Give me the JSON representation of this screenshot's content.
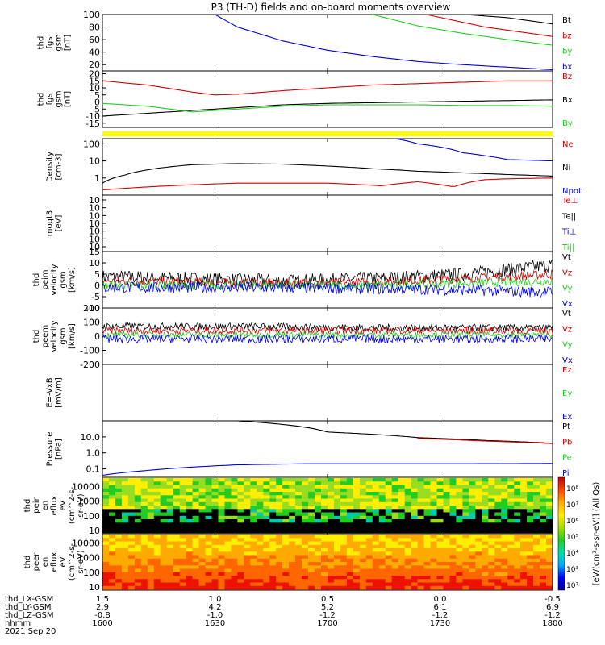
{
  "page": {
    "title": "P3 (TH-D) fields and on-board moments overview"
  },
  "chart_data": [
    {
      "type": "line",
      "panel": "fgs-btot-gsm",
      "ylabel": [
        "thd",
        "fgs",
        "gsm",
        "[nT]"
      ],
      "ylim": [
        10,
        100
      ],
      "yticks": [
        "100",
        "80",
        "60",
        "40",
        "20"
      ],
      "legend": [
        {
          "name": "Bt",
          "color": "#000000"
        },
        {
          "name": "bz",
          "color": "#d40000"
        },
        {
          "name": "by",
          "color": "#22cc22"
        },
        {
          "name": "bx",
          "color": "#0000dd"
        }
      ],
      "series": [
        {
          "name": "Bt",
          "color": "#000000",
          "x": [
            0.63,
            0.75,
            0.9,
            1.0
          ],
          "y": [
            109,
            103,
            95,
            85
          ]
        },
        {
          "name": "bz",
          "color": "#d40000",
          "x": [
            0.72,
            0.85,
            1.0
          ],
          "y": [
            100,
            80,
            65
          ]
        },
        {
          "name": "by",
          "color": "#22cc22",
          "x": [
            0.6,
            0.7,
            0.8,
            0.9,
            1.0
          ],
          "y": [
            100,
            82,
            70,
            60,
            51
          ]
        },
        {
          "name": "bx",
          "color": "#0000dd",
          "x": [
            0.25,
            0.3,
            0.4,
            0.5,
            0.6,
            0.7,
            0.8,
            0.9,
            1.0
          ],
          "y": [
            100,
            80,
            58,
            43,
            33,
            25,
            20,
            16,
            12
          ]
        }
      ]
    },
    {
      "type": "line",
      "panel": "fgs-b-gsm",
      "ylabel": [
        "thd",
        "fgs",
        "gsm",
        "[nT]"
      ],
      "ylim": [
        -18,
        22
      ],
      "yticks": [
        "20",
        "15",
        "10",
        "5",
        "0",
        "-5",
        "-10",
        "-15"
      ],
      "legend": [
        {
          "name": "Bz",
          "color": "#d40000"
        },
        {
          "name": "Bx",
          "color": "#000000"
        },
        {
          "name": "By",
          "color": "#22cc22"
        }
      ],
      "series": [
        {
          "name": "Bz",
          "color": "#d40000",
          "x": [
            0,
            0.1,
            0.2,
            0.25,
            0.3,
            0.4,
            0.5,
            0.6,
            0.7,
            0.8,
            0.9,
            1.0
          ],
          "y": [
            15,
            12,
            7,
            5,
            5.5,
            8,
            10,
            12,
            13,
            14,
            15,
            15
          ]
        },
        {
          "name": "Bx",
          "color": "#000000",
          "x": [
            0,
            0.1,
            0.2,
            0.3,
            0.4,
            0.5,
            0.6,
            0.7,
            0.8,
            0.9,
            1.0
          ],
          "y": [
            -10,
            -8,
            -6,
            -4,
            -2,
            -1,
            -0.5,
            0,
            0.5,
            1,
            1.5
          ]
        },
        {
          "name": "By",
          "color": "#22cc22",
          "x": [
            0,
            0.1,
            0.2,
            0.3,
            0.4,
            0.5,
            0.6,
            0.7,
            0.8,
            0.9,
            1.0
          ],
          "y": [
            -1,
            -3,
            -7,
            -5,
            -3,
            -2,
            -2,
            -2,
            -2.5,
            -2.5,
            -3
          ]
        }
      ]
    },
    {
      "type": "line",
      "panel": "moments-density",
      "ylabel": [
        "Density",
        "[cm-3]"
      ],
      "ylim": [
        0.1,
        200
      ],
      "ylog": true,
      "yticks": [
        "100",
        "10",
        "1"
      ],
      "legend": [
        {
          "name": "Ne",
          "color": "#d40000"
        },
        {
          "name": "Ni",
          "color": "#000000"
        },
        {
          "name": "Npot",
          "color": "#0000dd"
        }
      ],
      "series": [
        {
          "name": "Ni",
          "color": "#000000",
          "x": [
            0,
            0.05,
            0.1,
            0.2,
            0.3,
            0.4,
            0.5,
            0.6,
            0.7,
            0.8,
            0.9,
            1.0
          ],
          "y": [
            0.5,
            1.5,
            3,
            6,
            7,
            6.5,
            5,
            3.5,
            2.5,
            2,
            1.6,
            1.3
          ]
        },
        {
          "name": "Npot",
          "color": "#0000dd",
          "x": [
            0.65,
            0.7,
            0.8,
            0.85,
            0.9,
            1.0
          ],
          "y": [
            200,
            100,
            30,
            20,
            12,
            10
          ]
        },
        {
          "name": "Ne",
          "color": "#d40000",
          "x": [
            0,
            0.1,
            0.2,
            0.3,
            0.5,
            0.62,
            0.7,
            0.78,
            0.85,
            0.9,
            1.0
          ],
          "y": [
            0.2,
            0.3,
            0.4,
            0.5,
            0.5,
            0.35,
            0.6,
            0.3,
            0.8,
            0.9,
            1.0
          ]
        }
      ]
    },
    {
      "type": "line",
      "panel": "moments-temperature",
      "ylabel": [
        "moqt3",
        "[eV]"
      ],
      "legend": [
        {
          "name": "Te⊥",
          "color": "#d40000"
        },
        {
          "name": "Te||",
          "color": "#000000"
        },
        {
          "name": "Ti⊥",
          "color": "#0000dd"
        },
        {
          "name": "Ti||",
          "color": "#22cc22"
        }
      ],
      "yticks": [
        "10",
        "10",
        "10",
        "10",
        "10",
        "10",
        "10"
      ]
    },
    {
      "type": "line",
      "panel": "peim-velocity",
      "ylabel": [
        "thd",
        "peim",
        "velocity",
        "gsm",
        "[km/s]"
      ],
      "ylim": [
        -10,
        15
      ],
      "yticks": [
        "15",
        "10",
        "5",
        "0",
        "-5",
        "-10"
      ],
      "legend": [
        {
          "name": "Vt",
          "color": "#000000"
        },
        {
          "name": "Vz",
          "color": "#d40000"
        },
        {
          "name": "Vy",
          "color": "#22cc22"
        },
        {
          "name": "Vx",
          "color": "#0000dd"
        }
      ],
      "series": [
        {
          "name": "Vt",
          "color": "#000000",
          "x": [
            0,
            0.2,
            0.4,
            0.6,
            0.8,
            1.0
          ],
          "y": [
            4,
            3,
            2,
            3,
            5,
            9
          ],
          "noise": 3
        },
        {
          "name": "Vz",
          "color": "#d40000",
          "x": [
            0,
            0.2,
            0.4,
            0.6,
            0.8,
            1.0
          ],
          "y": [
            2,
            1.5,
            1,
            1.5,
            3,
            5
          ],
          "noise": 2
        },
        {
          "name": "Vy",
          "color": "#22cc22",
          "x": [
            0,
            0.2,
            0.4,
            0.6,
            0.8,
            1.0
          ],
          "y": [
            0,
            0,
            0,
            0,
            1,
            2
          ],
          "noise": 2
        },
        {
          "name": "Vx",
          "color": "#0000dd",
          "x": [
            0,
            0.2,
            0.4,
            0.6,
            0.8,
            1.0
          ],
          "y": [
            -1,
            -1,
            -1,
            -1.5,
            -2,
            -3
          ],
          "noise": 2.5
        }
      ]
    },
    {
      "type": "line",
      "panel": "peem-velocity",
      "ylabel": [
        "thd",
        "peem",
        "velocity",
        "gsm",
        "[km/s]"
      ],
      "ylim": [
        -200,
        200
      ],
      "yticks": [
        "200",
        "100",
        "0",
        "-100",
        "-200"
      ],
      "legend": [
        {
          "name": "Vt",
          "color": "#000000"
        },
        {
          "name": "Vz",
          "color": "#d40000"
        },
        {
          "name": "Vy",
          "color": "#22cc22"
        },
        {
          "name": "Vx",
          "color": "#0000dd"
        }
      ],
      "series": [
        {
          "name": "Vt",
          "color": "#000000",
          "x": [
            0,
            0.3,
            0.6,
            1.0
          ],
          "y": [
            70,
            70,
            60,
            60
          ],
          "noise": 25
        },
        {
          "name": "Vz",
          "color": "#d40000",
          "x": [
            0,
            0.3,
            0.6,
            1.0
          ],
          "y": [
            40,
            40,
            40,
            40
          ],
          "noise": 25
        },
        {
          "name": "Vy",
          "color": "#22cc22",
          "x": [
            0,
            0.3,
            0.6,
            1.0
          ],
          "y": [
            10,
            10,
            10,
            10
          ],
          "noise": 20
        },
        {
          "name": "Vx",
          "color": "#0000dd",
          "x": [
            0,
            0.3,
            0.6,
            1.0
          ],
          "y": [
            -20,
            -20,
            -20,
            -20
          ],
          "noise": 30
        }
      ]
    },
    {
      "type": "line",
      "panel": "efield",
      "ylabel": [
        "E=-VxB",
        "[mV/m]"
      ],
      "legend": [
        {
          "name": "Ez",
          "color": "#d40000"
        },
        {
          "name": "Ey",
          "color": "#22cc22"
        },
        {
          "name": "Ex",
          "color": "#0000dd"
        }
      ]
    },
    {
      "type": "line",
      "panel": "pressure",
      "ylabel": [
        "Pressure",
        "[nPa]"
      ],
      "ylim": [
        0.03,
        100
      ],
      "ylog": true,
      "yticks": [
        "10.0",
        "1.0",
        "0.1"
      ],
      "legend": [
        {
          "name": "Pt",
          "color": "#000000"
        },
        {
          "name": "Pb",
          "color": "#d40000"
        },
        {
          "name": "Pe",
          "color": "#22cc22"
        },
        {
          "name": "Pi",
          "color": "#0000dd"
        }
      ],
      "series": [
        {
          "name": "Pt",
          "color": "#000000",
          "x": [
            0.3,
            0.5,
            0.7,
            0.85,
            1.0
          ],
          "y": [
            100,
            20,
            9,
            6,
            4
          ]
        },
        {
          "name": "Pb",
          "color": "#d40000",
          "x": [
            0.7,
            0.85,
            1.0
          ],
          "y": [
            8,
            5.5,
            3.8
          ]
        },
        {
          "name": "Pi",
          "color": "#0000dd",
          "x": [
            0,
            0.1,
            0.2,
            0.3,
            0.45,
            0.6,
            0.8,
            1.0
          ],
          "y": [
            0.04,
            0.08,
            0.13,
            0.18,
            0.21,
            0.21,
            0.21,
            0.22
          ]
        },
        {
          "name": "Pe",
          "color": "#22cc22",
          "x": [
            0,
            0.2,
            0.4,
            1.0
          ],
          "y": [
            0.03,
            0.03,
            0.03,
            0.03
          ]
        }
      ]
    },
    {
      "type": "heatmap",
      "panel": "peir-en-eflux",
      "ylabel": [
        "thd",
        "peir",
        "en",
        "eflux",
        "eV",
        "(cm^2-s-",
        "sr-eV)"
      ],
      "yticks": [
        "10000",
        "1000",
        "100",
        "10"
      ]
    },
    {
      "type": "heatmap",
      "panel": "peer-en-eflux",
      "ylabel": [
        "thd",
        "peer",
        "en",
        "eflux",
        "eV",
        "(cm^2-s-",
        "sr-eV)"
      ],
      "yticks": [
        "10000",
        "1000",
        "100",
        "10"
      ]
    }
  ],
  "colorbar": {
    "label": "[eV/(cm²-s-sr-eV)] (All Qs)",
    "ticks": [
      "10⁸",
      "10⁷",
      "10⁶",
      "10⁵",
      "10⁴",
      "10³",
      "10²"
    ]
  },
  "xaxis": {
    "rows": [
      {
        "label": "thd_LX-GSM",
        "values": [
          "1.5",
          "1.0",
          "0.5",
          "0.0",
          "-0.5"
        ]
      },
      {
        "label": "thd_LY-GSM",
        "values": [
          "2.9",
          "4.2",
          "5.2",
          "6.1",
          "6.9"
        ]
      },
      {
        "label": "thd_LZ-GSM",
        "values": [
          "-0.8",
          "-1.0",
          "-1.2",
          "-1.2",
          "-1.2"
        ]
      },
      {
        "label": "hhmm",
        "values": [
          "1600",
          "1630",
          "1700",
          "1730",
          "1800"
        ]
      }
    ],
    "date": "2021 Sep 20"
  }
}
